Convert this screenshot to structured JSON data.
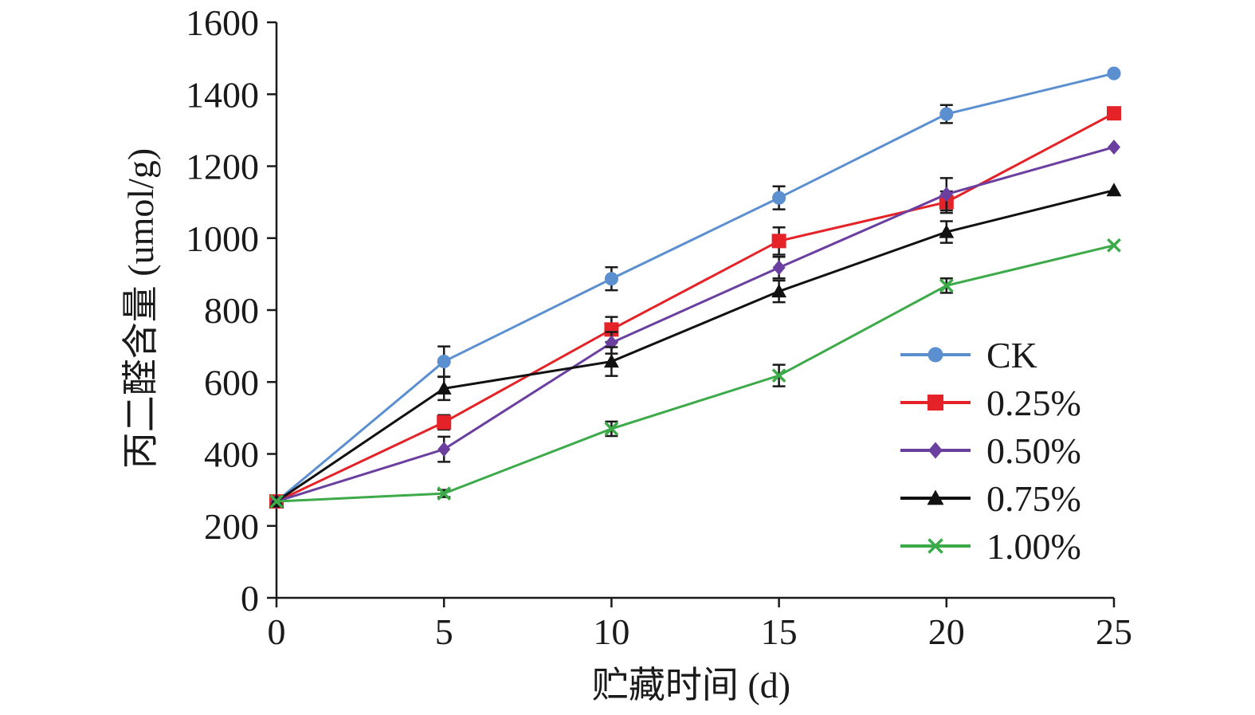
{
  "chart_data": {
    "type": "line",
    "title": "",
    "xlabel": "贮藏时间 (d)",
    "ylabel": "丙二醛含量 (umol/g)",
    "x": [
      0,
      5,
      10,
      15,
      20,
      25
    ],
    "xlim": [
      0,
      25
    ],
    "ylim": [
      0,
      1600
    ],
    "xticks": [
      "0",
      "5",
      "10",
      "15",
      "20",
      "25"
    ],
    "yticks": [
      "0",
      "200",
      "400",
      "600",
      "800",
      "1000",
      "1200",
      "1400",
      "1600"
    ],
    "grid": false,
    "legend_position": "right",
    "series": [
      {
        "name": "CK",
        "color": "#5b8fd0",
        "marker": "circle",
        "values": [
          268,
          657,
          887,
          1112,
          1345,
          1458
        ],
        "errors": [
          0,
          42,
          32,
          32,
          25,
          0
        ]
      },
      {
        "name": "0.25%",
        "color": "#e42227",
        "marker": "square",
        "values": [
          268,
          488,
          746,
          992,
          1100,
          1347
        ],
        "errors": [
          0,
          20,
          35,
          38,
          30,
          0
        ]
      },
      {
        "name": "0.50%",
        "color": "#6a3fa0",
        "marker": "diamond",
        "values": [
          268,
          413,
          709,
          918,
          1122,
          1253
        ],
        "errors": [
          0,
          35,
          30,
          30,
          45,
          0
        ]
      },
      {
        "name": "0.75%",
        "color": "#111111",
        "marker": "triangle",
        "values": [
          268,
          582,
          657,
          852,
          1017,
          1133
        ],
        "errors": [
          0,
          32,
          40,
          30,
          30,
          0
        ]
      },
      {
        "name": "1.00%",
        "color": "#3daa4a",
        "marker": "x",
        "values": [
          268,
          290,
          470,
          618,
          868,
          980
        ],
        "errors": [
          0,
          10,
          20,
          30,
          20,
          0
        ]
      }
    ]
  }
}
